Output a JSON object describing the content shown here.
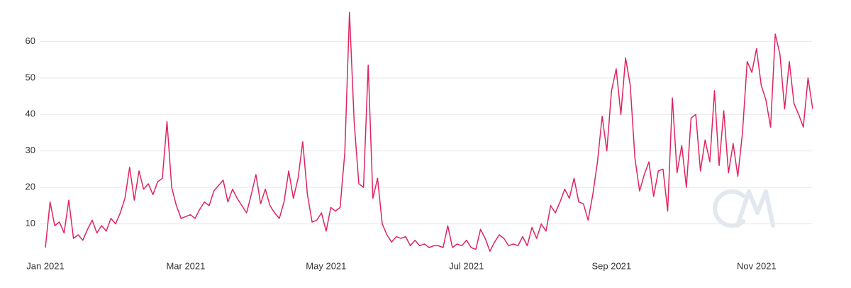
{
  "chart_data": {
    "type": "line",
    "categories": [
      "Jan 2021",
      null,
      null,
      null,
      null,
      null,
      null,
      null,
      null,
      null,
      null,
      null,
      null,
      null,
      null,
      null,
      null,
      null,
      null,
      null,
      null,
      null,
      null,
      null,
      null,
      null,
      null,
      null,
      null,
      null,
      "Mar 2021",
      null,
      null,
      null,
      null,
      null,
      null,
      null,
      null,
      null,
      null,
      null,
      null,
      null,
      null,
      null,
      null,
      null,
      null,
      null,
      null,
      null,
      null,
      null,
      null,
      null,
      null,
      null,
      null,
      null,
      "May 2021",
      null,
      null,
      null,
      null,
      null,
      null,
      null,
      null,
      null,
      null,
      null,
      null,
      null,
      null,
      null,
      null,
      null,
      null,
      null,
      null,
      null,
      null,
      null,
      null,
      null,
      null,
      null,
      null,
      null,
      "Jul 2021",
      null,
      null,
      null,
      null,
      null,
      null,
      null,
      null,
      null,
      null,
      null,
      null,
      null,
      null,
      null,
      null,
      null,
      null,
      null,
      null,
      null,
      null,
      null,
      null,
      null,
      null,
      null,
      null,
      null,
      null,
      "Sep 2021",
      null,
      null,
      null,
      null,
      null,
      null,
      null,
      null,
      null,
      null,
      null,
      null,
      null,
      null,
      null,
      null,
      null,
      null,
      null,
      null,
      null,
      null,
      null,
      null,
      null,
      null,
      null,
      null,
      null,
      null,
      "Nov 2021",
      null,
      null,
      null,
      null,
      null,
      null,
      null,
      null,
      null,
      null,
      null,
      null
    ],
    "values": [
      3.5,
      16,
      9.5,
      10.5,
      7.5,
      16.5,
      6,
      7,
      5.5,
      8.5,
      11,
      7.5,
      9.5,
      8,
      11.5,
      10,
      13,
      17,
      25.5,
      16.5,
      24.5,
      19.5,
      21,
      18,
      21.5,
      22.5,
      38,
      20,
      15,
      11.5,
      12,
      12.5,
      11.5,
      14,
      16,
      15,
      19,
      20.5,
      22,
      16,
      19.5,
      17,
      15,
      13,
      18,
      23.5,
      15.5,
      19.5,
      15,
      13,
      11.5,
      16,
      24.5,
      17,
      22.5,
      32.5,
      18,
      10.5,
      11,
      13,
      8,
      14.5,
      13.5,
      14.5,
      29.5,
      68,
      38,
      21,
      20,
      53.5,
      17,
      22.5,
      10,
      7,
      5,
      6.5,
      6,
      6.5,
      4,
      5.5,
      4,
      4.5,
      3.5,
      4,
      4,
      3.5,
      9.5,
      3.5,
      4.5,
      4,
      5.5,
      3.5,
      3,
      8.5,
      6,
      2.5,
      5,
      7,
      6,
      4,
      4.5,
      4,
      6.5,
      4,
      9,
      6,
      10,
      8,
      15,
      13,
      16,
      19.5,
      17,
      22.5,
      16,
      15.5,
      11,
      18,
      27,
      39.5,
      30,
      46.5,
      52.5,
      40,
      55.5,
      48,
      28,
      19,
      23.5,
      27,
      17.5,
      24.5,
      25,
      13.5,
      44.5,
      24,
      31.5,
      20,
      39,
      40,
      24.5,
      33,
      27,
      46.5,
      26,
      41,
      24,
      32,
      23,
      35,
      54.5,
      51.5,
      58,
      48,
      44,
      36.5,
      62,
      56.5,
      41.5,
      54.5,
      43,
      40,
      36.5,
      50,
      41.5
    ],
    "color": "#e0245e",
    "ylim": [
      0,
      70
    ],
    "yticks": [
      10,
      20,
      30,
      40,
      50,
      60
    ],
    "grid": true
  }
}
